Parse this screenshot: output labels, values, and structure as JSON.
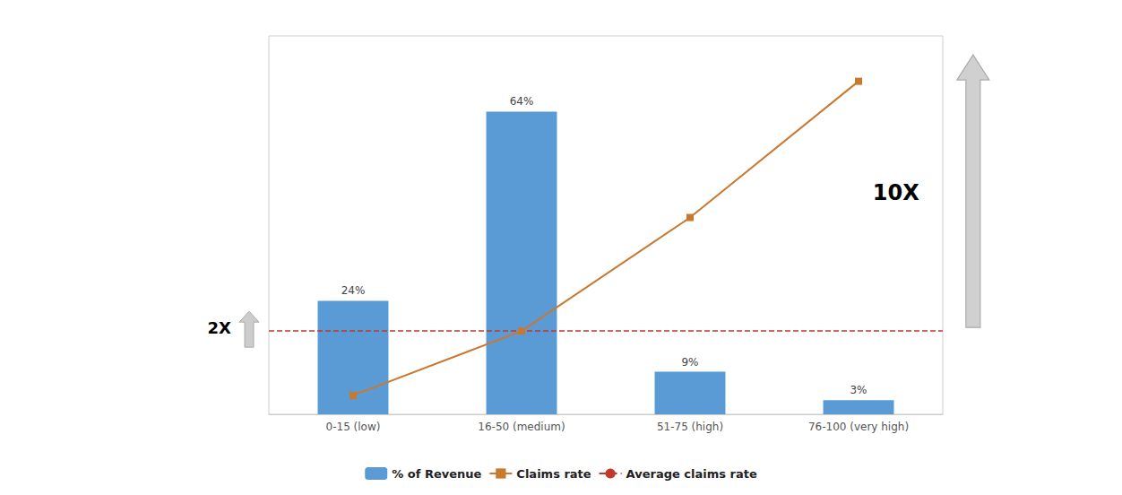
{
  "chart_data": {
    "type": "bar",
    "categories": [
      "0-15 (low)",
      "16-50 (medium)",
      "51-75 (high)",
      "76-100 (very high)"
    ],
    "series": [
      {
        "name": "% of Revenue",
        "type": "bar",
        "color": "#5B9BD5",
        "values": [
          24,
          64,
          9,
          3
        ],
        "value_labels": [
          "24%",
          "64%",
          "9%",
          "3%"
        ]
      },
      {
        "name": "Claims rate",
        "type": "line",
        "axis": "y2",
        "color": "#C97830",
        "marker": "square",
        "values": [
          0.05,
          0.22,
          0.52,
          0.88
        ]
      },
      {
        "name": "Average claims rate",
        "type": "hline",
        "axis": "y2",
        "color": "#C0392B",
        "line_style": "dashed",
        "value": 0.22
      }
    ],
    "ylim": [
      0,
      80
    ],
    "y2lim": [
      0,
      1
    ],
    "tick_labels": "x",
    "data_labels": true,
    "legend": "bottom",
    "grid": false,
    "annotations": [
      {
        "text": "2X"
      },
      {
        "text": "10X"
      }
    ]
  }
}
